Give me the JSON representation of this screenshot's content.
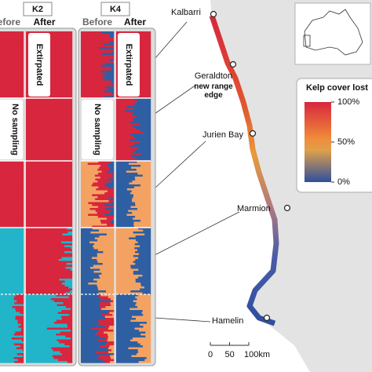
{
  "panels": [
    {
      "label": "K2",
      "before": "Before",
      "after": "After",
      "extirpated": "Extirpated",
      "no_sampling": "No sampling"
    },
    {
      "label": "K4",
      "before": "Before",
      "after": "After",
      "extirpated": "Extirpated",
      "no_sampling": "No sampling"
    }
  ],
  "sites": [
    {
      "name": "Kalbarri"
    },
    {
      "name": "Geraldton",
      "note": "new range edge"
    },
    {
      "name": "Jurien Bay"
    },
    {
      "name": "Marmion"
    },
    {
      "name": "Hamelin"
    }
  ],
  "legend": {
    "title": "Kelp cover lost",
    "ticks": [
      {
        "value": 100,
        "label": "100%"
      },
      {
        "value": 50,
        "label": "50%"
      },
      {
        "value": 0,
        "label": "0%"
      }
    ]
  },
  "scale_bar": {
    "ticks": [
      0,
      50,
      {
        "value": 100,
        "label": "100km"
      }
    ]
  }
}
